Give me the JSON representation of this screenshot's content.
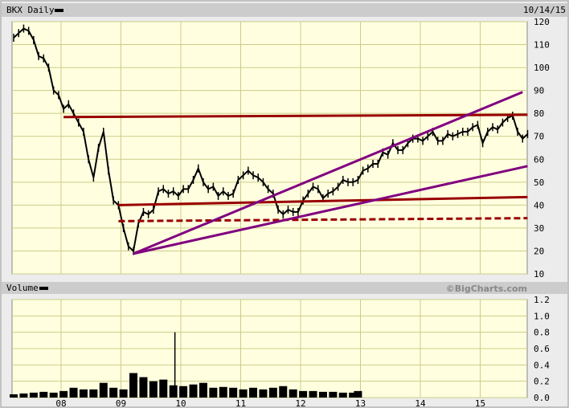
{
  "header": {
    "title": "BKX Daily",
    "date": "10/14/15"
  },
  "volume_header": {
    "title": "Volume",
    "copyright": "©BigCharts.com"
  },
  "colors": {
    "plot_bg": "#ffffe0",
    "grid": "#cccc88",
    "price": "#000000",
    "resistance": "#990000",
    "channel": "#800080"
  },
  "chart_data": [
    {
      "type": "line",
      "title": "BKX Daily",
      "x_ticks": [
        "08",
        "09",
        "10",
        "11",
        "12",
        "13",
        "14",
        "15"
      ],
      "y_ticks": [
        10,
        20,
        30,
        40,
        50,
        60,
        70,
        80,
        90,
        100,
        110,
        120
      ],
      "ylim": [
        10,
        120
      ],
      "xlim": [
        "2007-03",
        "2015-10"
      ],
      "grid": true,
      "series": [
        {
          "x": [
            "2007-03",
            "2007-04",
            "2007-05",
            "2007-06",
            "2007-07",
            "2007-08",
            "2007-09",
            "2007-10",
            "2007-11",
            "2007-12",
            "2008-01",
            "2008-02",
            "2008-03",
            "2008-04",
            "2008-05",
            "2008-06",
            "2008-07",
            "2008-08",
            "2008-09",
            "2008-10",
            "2008-11",
            "2008-12",
            "2009-01",
            "2009-02",
            "2009-03",
            "2009-04",
            "2009-05",
            "2009-06",
            "2009-07",
            "2009-08",
            "2009-09",
            "2009-10",
            "2009-11",
            "2009-12",
            "2010-01",
            "2010-02",
            "2010-03",
            "2010-04",
            "2010-05",
            "2010-06",
            "2010-07",
            "2010-08",
            "2010-09",
            "2010-10",
            "2010-11",
            "2010-12",
            "2011-01",
            "2011-02",
            "2011-03",
            "2011-04",
            "2011-05",
            "2011-06",
            "2011-07",
            "2011-08",
            "2011-09",
            "2011-10",
            "2011-11",
            "2011-12",
            "2012-01",
            "2012-02",
            "2012-03",
            "2012-04",
            "2012-05",
            "2012-06",
            "2012-07",
            "2012-08",
            "2012-09",
            "2012-10",
            "2012-11",
            "2012-12",
            "2013-01",
            "2013-02",
            "2013-03",
            "2013-04",
            "2013-05",
            "2013-06",
            "2013-07",
            "2013-08",
            "2013-09",
            "2013-10",
            "2013-11",
            "2013-12",
            "2014-01",
            "2014-02",
            "2014-03",
            "2014-04",
            "2014-05",
            "2014-06",
            "2014-07",
            "2014-08",
            "2014-09",
            "2014-10",
            "2014-11",
            "2014-12",
            "2015-01",
            "2015-02",
            "2015-03",
            "2015-04",
            "2015-05",
            "2015-06",
            "2015-07",
            "2015-08",
            "2015-09",
            "2015-10"
          ],
          "y": [
            113,
            115,
            117,
            116,
            112,
            105,
            104,
            100,
            90,
            88,
            82,
            84,
            80,
            76,
            72,
            60,
            52,
            65,
            72,
            55,
            42,
            40,
            30,
            22,
            20,
            32,
            37,
            36,
            38,
            46,
            47,
            45,
            46,
            44,
            47,
            47,
            51,
            56,
            50,
            47,
            48,
            44,
            46,
            44,
            45,
            51,
            53,
            55,
            53,
            52,
            50,
            47,
            45,
            38,
            36,
            38,
            37,
            37,
            42,
            45,
            48,
            47,
            43,
            45,
            46,
            48,
            51,
            50,
            50,
            51,
            55,
            56,
            58,
            58,
            63,
            62,
            67,
            64,
            64,
            67,
            69,
            69,
            68,
            70,
            72,
            68,
            68,
            71,
            70,
            71,
            72,
            72,
            74,
            75,
            67,
            72,
            74,
            73,
            76,
            78,
            79,
            72,
            69,
            71
          ]
        }
      ],
      "trend_lines": [
        {
          "style": "solid",
          "color": "resistance",
          "from": [
            "2008-01",
            78.4
          ],
          "to": [
            "2015-10",
            79.4
          ]
        },
        {
          "style": "solid",
          "color": "resistance",
          "from": [
            "2008-12",
            40
          ],
          "to": [
            "2015-10",
            43.5
          ]
        },
        {
          "style": "dashed",
          "color": "resistance",
          "from": [
            "2008-12",
            33
          ],
          "to": [
            "2015-10",
            34.3
          ]
        },
        {
          "style": "solid",
          "color": "channel",
          "from": [
            "2009-03",
            18.8
          ],
          "to": [
            "2015-09",
            89.3
          ]
        },
        {
          "style": "solid",
          "color": "channel",
          "from": [
            "2009-03",
            18.8
          ],
          "to": [
            "2015-10",
            57
          ]
        }
      ]
    },
    {
      "type": "bar",
      "title": "Volume",
      "y_ticks": [
        "0.0",
        "0.2",
        "0.4",
        "0.6",
        "0.8",
        "1.0",
        "1.2"
      ],
      "ylim": [
        0,
        1.2
      ],
      "x": [
        "2007-03",
        "2007-05",
        "2007-07",
        "2007-09",
        "2007-11",
        "2008-01",
        "2008-03",
        "2008-05",
        "2008-07",
        "2008-09",
        "2008-11",
        "2009-01",
        "2009-03",
        "2009-05",
        "2009-07",
        "2009-09",
        "2009-11",
        "2009-12",
        "2010-01",
        "2010-03",
        "2010-05",
        "2010-07",
        "2010-09",
        "2010-11",
        "2011-01",
        "2011-03",
        "2011-05",
        "2011-07",
        "2011-09",
        "2011-11",
        "2012-01",
        "2012-03",
        "2012-05",
        "2012-07",
        "2012-09",
        "2012-11",
        "2012-12"
      ],
      "values": [
        0.04,
        0.05,
        0.06,
        0.07,
        0.06,
        0.08,
        0.12,
        0.1,
        0.1,
        0.18,
        0.12,
        0.1,
        0.3,
        0.25,
        0.2,
        0.22,
        0.15,
        0.8,
        0.14,
        0.16,
        0.18,
        0.12,
        0.13,
        0.12,
        0.1,
        0.12,
        0.1,
        0.12,
        0.14,
        0.1,
        0.08,
        0.08,
        0.07,
        0.07,
        0.06,
        0.06,
        0.08
      ]
    }
  ]
}
